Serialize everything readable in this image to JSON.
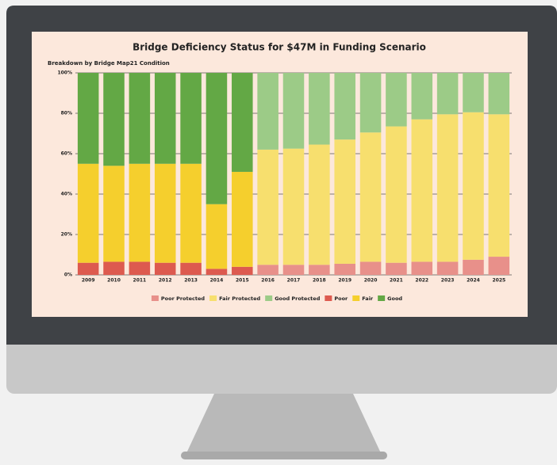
{
  "chart_data": {
    "type": "bar",
    "stacked": true,
    "title": "Bridge Deficiency Status for $47M in Funding Scenario",
    "subtitle": "Breakdown by Bridge Map21 Condition",
    "categories": [
      "2009",
      "2010",
      "2011",
      "2012",
      "2013",
      "2014",
      "2015",
      "2016",
      "2017",
      "2018",
      "2019",
      "2020",
      "2021",
      "2022",
      "2023",
      "2024",
      "2025"
    ],
    "series": [
      {
        "name": "Poor Protected",
        "color": "#e8908a",
        "values": [
          0,
          0,
          0,
          0,
          0,
          0,
          0,
          5,
          5,
          5,
          5.5,
          6.5,
          6,
          6.5,
          6.5,
          7.5,
          9
        ]
      },
      {
        "name": "Fair Protected",
        "color": "#f7df6e",
        "values": [
          0,
          0,
          0,
          0,
          0,
          0,
          0,
          57,
          57.5,
          59.5,
          61.5,
          64,
          67.5,
          70.5,
          73,
          73,
          70.5
        ]
      },
      {
        "name": "Good Protected",
        "color": "#9ccb87",
        "values": [
          0,
          0,
          0,
          0,
          0,
          0,
          0,
          38,
          37.5,
          35.5,
          33,
          29.5,
          26.5,
          23,
          20.5,
          19.5,
          20.5
        ]
      },
      {
        "name": "Poor",
        "color": "#dd5a4f",
        "values": [
          6,
          6.5,
          6.5,
          6,
          6,
          3,
          4,
          0,
          0,
          0,
          0,
          0,
          0,
          0,
          0,
          0,
          0
        ]
      },
      {
        "name": "Fair",
        "color": "#f5cf2d",
        "values": [
          49,
          47.5,
          48.5,
          49,
          49,
          32,
          47,
          0,
          0,
          0,
          0,
          0,
          0,
          0,
          0,
          0,
          0
        ]
      },
      {
        "name": "Good",
        "color": "#63a845",
        "values": [
          45,
          46,
          45,
          45,
          45,
          65,
          49,
          0,
          0,
          0,
          0,
          0,
          0,
          0,
          0,
          0,
          0
        ]
      }
    ],
    "ylim": [
      0,
      100
    ],
    "yticks": [
      {
        "value": 0,
        "label": "0%"
      },
      {
        "value": 20,
        "label": "20%"
      },
      {
        "value": 40,
        "label": "40%"
      },
      {
        "value": 60,
        "label": "60%"
      },
      {
        "value": 80,
        "label": "80%"
      },
      {
        "value": 100,
        "label": "100%"
      }
    ],
    "grid": true
  }
}
